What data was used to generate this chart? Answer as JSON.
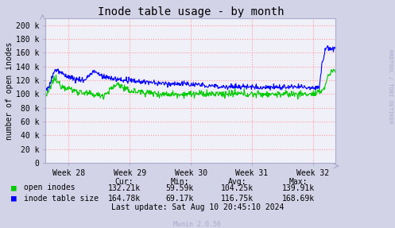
{
  "title": "Inode table usage - by month",
  "ylabel": "number of open inodes",
  "background_color": "#d3d3e8",
  "plot_bg_color": "#f0f0f8",
  "grid_color": "#ff9999",
  "x_ticks": [
    "Week 28",
    "Week 29",
    "Week 30",
    "Week 31",
    "Week 32"
  ],
  "y_ticks": [
    0,
    20000,
    40000,
    60000,
    80000,
    100000,
    120000,
    140000,
    160000,
    180000,
    200000
  ],
  "y_labels": [
    "0",
    "20 k",
    "40 k",
    "60 k",
    "80 k",
    "100 k",
    "120 k",
    "140 k",
    "160 k",
    "180 k",
    "200 k"
  ],
  "ylim": [
    0,
    210000
  ],
  "legend_items": [
    "open inodes",
    "inode table size"
  ],
  "legend_colors": [
    "#00cc00",
    "#0000ff"
  ],
  "stats_labels": [
    "Cur:",
    "Min:",
    "Avg:",
    "Max:"
  ],
  "open_inodes_stats": [
    "132.21k",
    "59.59k",
    "104.25k",
    "139.91k"
  ],
  "inode_table_stats": [
    "164.78k",
    "69.17k",
    "116.75k",
    "168.69k"
  ],
  "last_update": "Last update: Sat Aug 10 20:45:10 2024",
  "munin_version": "Munin 2.0.56",
  "rrdtool_text": "RRDTOOL / TOBI OETIKER",
  "green_color": "#00cc00",
  "blue_color": "#0000ff",
  "title_color": "#000000",
  "text_color": "#000000",
  "axis_color": "#aaaacc"
}
